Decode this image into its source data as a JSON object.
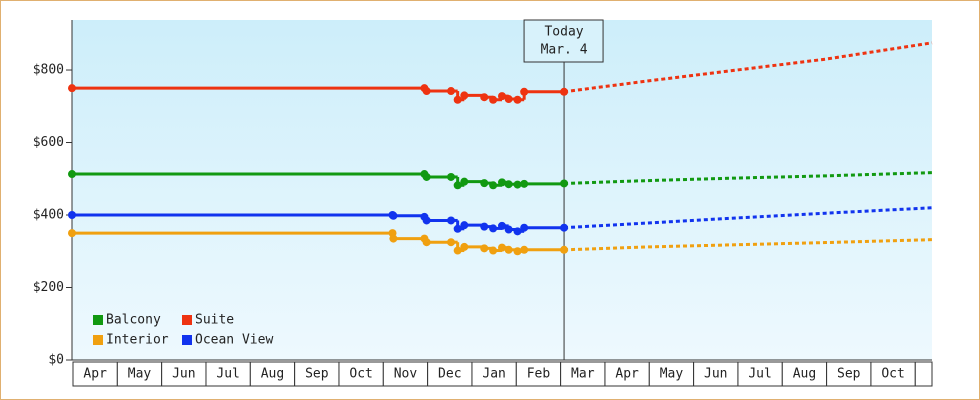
{
  "chart_data": {
    "type": "step-line",
    "x_categories": [
      "Apr",
      "May",
      "Jun",
      "Jul",
      "Aug",
      "Sep",
      "Oct",
      "Nov",
      "Dec",
      "Jan",
      "Feb",
      "Mar",
      "Apr",
      "May",
      "Jun",
      "Jul",
      "Aug",
      "Sep",
      "Oct"
    ],
    "xlim": [
      0,
      19.4
    ],
    "ylim": [
      0,
      938
    ],
    "yticks": [
      {
        "value": 0,
        "label": "$0"
      },
      {
        "value": 200,
        "label": "$200"
      },
      {
        "value": 400,
        "label": "$400"
      },
      {
        "value": 600,
        "label": "$600"
      },
      {
        "value": 800,
        "label": "$800"
      }
    ],
    "today": {
      "x": 11.1,
      "label_lines": [
        "Today",
        "Mar. 4"
      ]
    },
    "series": [
      {
        "name": "Balcony",
        "color": "#119911",
        "x": [
          0,
          7.95,
          8.0,
          8.55,
          8.7,
          8.85,
          9.3,
          9.5,
          9.7,
          9.85,
          10.05,
          10.2,
          11.1
        ],
        "values": [
          513,
          513,
          505,
          505,
          482,
          492,
          488,
          482,
          490,
          485,
          484,
          486,
          487
        ],
        "forecast_x": [
          11.1,
          13,
          15,
          17,
          19.4
        ],
        "forecast_values": [
          487,
          495,
          502,
          508,
          517
        ]
      },
      {
        "name": "Suite",
        "color": "#ee3311",
        "x": [
          0,
          7.95,
          8.0,
          8.55,
          8.7,
          8.85,
          9.3,
          9.5,
          9.7,
          9.85,
          10.05,
          10.2,
          11.1
        ],
        "values": [
          750,
          750,
          742,
          742,
          718,
          730,
          725,
          718,
          728,
          720,
          718,
          740,
          740
        ],
        "forecast_x": [
          11.1,
          13,
          15,
          17,
          19.4
        ],
        "forecast_values": [
          740,
          770,
          800,
          830,
          875
        ]
      },
      {
        "name": "Interior",
        "color": "#f0a010",
        "x": [
          0,
          7.23,
          7.25,
          7.95,
          8.0,
          8.55,
          8.7,
          8.85,
          9.3,
          9.5,
          9.7,
          9.85,
          10.05,
          10.2,
          11.1
        ],
        "values": [
          350,
          350,
          335,
          335,
          325,
          325,
          302,
          312,
          308,
          302,
          310,
          304,
          300,
          304,
          304
        ],
        "forecast_x": [
          11.1,
          13,
          15,
          17,
          19.4
        ],
        "forecast_values": [
          304,
          312,
          318,
          324,
          332
        ]
      },
      {
        "name": "Ocean View",
        "color": "#1133ee",
        "x": [
          0,
          7.23,
          7.25,
          7.95,
          8.0,
          8.55,
          8.7,
          8.85,
          9.3,
          9.5,
          9.7,
          9.85,
          10.05,
          10.2,
          11.1
        ],
        "values": [
          400,
          400,
          398,
          395,
          385,
          385,
          362,
          372,
          368,
          363,
          370,
          360,
          355,
          365,
          365
        ],
        "forecast_x": [
          11.1,
          13,
          15,
          17,
          19.4
        ],
        "forecast_values": [
          365,
          378,
          392,
          405,
          420
        ]
      }
    ]
  }
}
